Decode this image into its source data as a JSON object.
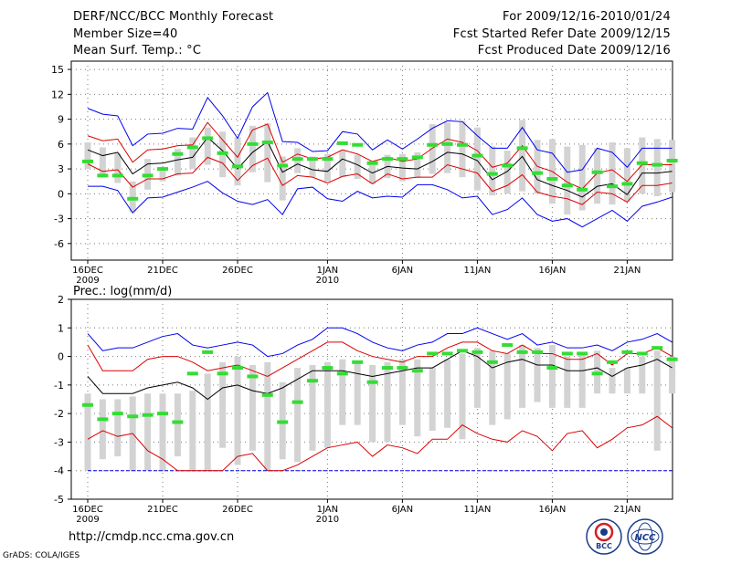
{
  "header": {
    "title": "DERF/NCC/BCC Monthly Forecast",
    "member_size": "Member Size=40",
    "variable1": "Mean Surf. Temp.: °C",
    "period": "For 2009/12/16-2010/01/24",
    "started": "Fcst Started Refer Date 2009/12/15",
    "produced": "Fcst Produced Date 2009/12/16"
  },
  "footer": {
    "url": "http://cmdp.ncc.cma.gov.cn",
    "grads": "GrADS: COLA/IGES",
    "logo_bcc": "BCC",
    "logo_ncc": "NCC"
  },
  "colors": {
    "bar": "#d3d3d3",
    "obs": "#33dd33",
    "max": "#0000ee",
    "min": "#0000ee",
    "upper": "#dd0000",
    "lower": "#dd0000",
    "mean": "#000000",
    "grid": "#777777"
  },
  "chart_data": [
    {
      "type": "line",
      "title": "Mean Surf. Temp.: °C",
      "x_ticks": [
        {
          "i": 0,
          "label": "16DEC",
          "sub": "2009"
        },
        {
          "i": 5,
          "label": "21DEC"
        },
        {
          "i": 10,
          "label": "26DEC"
        },
        {
          "i": 16,
          "label": "1JAN",
          "sub": "2010"
        },
        {
          "i": 21,
          "label": "6JAN"
        },
        {
          "i": 26,
          "label": "11JAN"
        },
        {
          "i": 31,
          "label": "16JAN"
        },
        {
          "i": 36,
          "label": "21JAN"
        }
      ],
      "ylim": [
        -8,
        16
      ],
      "yticks": [
        -6,
        -3,
        0,
        3,
        6,
        9,
        12,
        15
      ],
      "series": [
        {
          "name": "max",
          "values": [
            10.3,
            9.6,
            9.4,
            5.8,
            7.2,
            7.3,
            7.9,
            7.8,
            11.6,
            9.4,
            6.7,
            10.5,
            12.2,
            6.3,
            6.2,
            5.1,
            5.2,
            7.5,
            7.2,
            5.3,
            6.5,
            5.4,
            6.6,
            7.9,
            8.8,
            8.7,
            7.0,
            5.5,
            5.5,
            8.0,
            5.3,
            4.9,
            2.6,
            2.9,
            5.5,
            5.0,
            3.2,
            5.5,
            5.5,
            5.5
          ]
        },
        {
          "name": "upper",
          "values": [
            7.0,
            6.4,
            6.6,
            3.8,
            5.3,
            5.4,
            5.8,
            5.9,
            8.6,
            6.5,
            4.4,
            7.7,
            8.4,
            3.8,
            4.8,
            4.2,
            4.4,
            5.3,
            4.8,
            3.9,
            4.4,
            3.9,
            4.2,
            5.5,
            6.6,
            6.2,
            5.2,
            3.2,
            3.7,
            5.8,
            3.3,
            2.7,
            1.4,
            0.6,
            2.5,
            2.9,
            1.5,
            3.5,
            3.5,
            3.5
          ]
        },
        {
          "name": "mean",
          "values": [
            5.3,
            4.6,
            5.0,
            2.4,
            3.6,
            3.7,
            4.1,
            4.4,
            6.8,
            5.2,
            3.0,
            5.0,
            6.3,
            2.6,
            3.6,
            2.9,
            2.7,
            4.2,
            3.5,
            2.5,
            3.3,
            3.1,
            3.0,
            3.9,
            5.0,
            4.8,
            4.0,
            1.7,
            2.7,
            4.5,
            1.7,
            1.0,
            0.4,
            -0.4,
            0.9,
            1.2,
            -0.1,
            2.5,
            2.5,
            2.7
          ]
        },
        {
          "name": "lower",
          "values": [
            3.6,
            2.7,
            2.9,
            0.8,
            1.8,
            1.8,
            2.4,
            2.5,
            4.4,
            3.7,
            1.6,
            3.4,
            4.3,
            1.0,
            2.2,
            2.0,
            1.3,
            2.1,
            2.4,
            1.2,
            2.4,
            1.8,
            2.0,
            2.0,
            3.5,
            3.0,
            2.5,
            0.3,
            1.0,
            2.3,
            0.2,
            -0.3,
            -0.6,
            -1.3,
            0.2,
            0.0,
            -1.0,
            1.0,
            1.0,
            1.3
          ]
        },
        {
          "name": "min",
          "values": [
            0.9,
            0.9,
            0.4,
            -2.3,
            -0.5,
            -0.4,
            0.2,
            0.8,
            1.5,
            0.1,
            -0.9,
            -1.3,
            -0.7,
            -2.5,
            0.6,
            0.8,
            -0.6,
            -0.9,
            0.3,
            -0.5,
            -0.3,
            -0.4,
            1.1,
            1.1,
            0.5,
            -0.5,
            -0.3,
            -2.5,
            -1.9,
            -0.5,
            -2.5,
            -3.3,
            -3.0,
            -4.0,
            -3.0,
            -2.0,
            -3.3,
            -1.5,
            -1.0,
            -0.4
          ]
        },
        {
          "name": "box_high",
          "values": [
            6.2,
            5.6,
            4.9,
            1.5,
            4.2,
            3.0,
            5.4,
            6.8,
            8.0,
            7.5,
            6.8,
            8.2,
            8.5,
            4.5,
            5.5,
            4.5,
            4.8,
            5.2,
            4.7,
            3.8,
            4.7,
            4.8,
            5.0,
            8.4,
            8.6,
            8.8,
            8.0,
            5.7,
            5.2,
            8.9,
            6.5,
            6.6,
            5.7,
            5.9,
            5.5,
            6.2,
            5.5,
            6.8,
            6.6,
            6.5
          ]
        },
        {
          "name": "box_low",
          "values": [
            3.0,
            2.0,
            1.3,
            -2.2,
            0.5,
            1.5,
            2.2,
            3.0,
            3.5,
            2.0,
            1.0,
            2.6,
            1.4,
            -0.8,
            2.5,
            2.0,
            1.5,
            2.0,
            1.8,
            1.2,
            1.9,
            1.5,
            1.9,
            2.4,
            2.5,
            2.0,
            0.4,
            -0.2,
            0.0,
            0.3,
            0.0,
            -1.2,
            -2.5,
            -2.0,
            -1.2,
            -1.3,
            -1.0,
            0.0,
            -0.3,
            0.2
          ]
        },
        {
          "name": "observed",
          "values": [
            3.9,
            2.2,
            2.2,
            -0.6,
            2.2,
            3.0,
            4.8,
            5.6,
            6.7,
            4.9,
            3.3,
            6.0,
            6.2,
            3.4,
            4.2,
            4.2,
            4.2,
            6.1,
            5.9,
            3.7,
            4.2,
            4.2,
            4.4,
            5.9,
            6.0,
            5.9,
            4.6,
            2.4,
            3.4,
            5.5,
            2.5,
            1.8,
            1.0,
            0.5,
            2.6,
            0.9,
            1.2,
            3.7,
            3.5,
            4.0
          ]
        }
      ]
    },
    {
      "type": "line",
      "title": "Prec.: log(mm/d)",
      "x_ticks": [
        {
          "i": 0,
          "label": "16DEC",
          "sub": "2009"
        },
        {
          "i": 5,
          "label": "21DEC"
        },
        {
          "i": 10,
          "label": "26DEC"
        },
        {
          "i": 16,
          "label": "1JAN",
          "sub": "2010"
        },
        {
          "i": 21,
          "label": "6JAN"
        },
        {
          "i": 26,
          "label": "11JAN"
        },
        {
          "i": 31,
          "label": "16JAN"
        },
        {
          "i": 36,
          "label": "21JAN"
        }
      ],
      "ylim": [
        -5,
        2
      ],
      "yticks": [
        -5,
        -4,
        -3,
        -2,
        -1,
        0,
        1,
        2
      ],
      "series": [
        {
          "name": "max",
          "values": [
            0.8,
            0.2,
            0.3,
            0.3,
            0.5,
            0.7,
            0.8,
            0.4,
            0.3,
            0.4,
            0.5,
            0.4,
            0.0,
            0.1,
            0.4,
            0.6,
            1.0,
            1.0,
            0.8,
            0.5,
            0.3,
            0.2,
            0.4,
            0.5,
            0.8,
            0.8,
            1.0,
            0.8,
            0.6,
            0.8,
            0.4,
            0.5,
            0.3,
            0.3,
            0.4,
            0.2,
            0.5,
            0.6,
            0.8,
            0.5
          ]
        },
        {
          "name": "upper",
          "values": [
            0.4,
            -0.5,
            -0.5,
            -0.5,
            -0.1,
            0.0,
            0.0,
            -0.2,
            -0.5,
            -0.4,
            -0.3,
            -0.5,
            -0.7,
            -0.4,
            -0.1,
            0.2,
            0.5,
            0.5,
            0.2,
            0.0,
            -0.1,
            -0.2,
            0.0,
            0.0,
            0.3,
            0.5,
            0.5,
            0.2,
            0.1,
            0.4,
            0.1,
            0.1,
            -0.1,
            -0.1,
            0.1,
            -0.3,
            0.1,
            0.1,
            0.3,
            0.0
          ]
        },
        {
          "name": "mean",
          "values": [
            -0.7,
            -1.3,
            -1.3,
            -1.3,
            -1.1,
            -1.0,
            -0.9,
            -1.1,
            -1.5,
            -1.1,
            -1.0,
            -1.2,
            -1.3,
            -1.1,
            -0.8,
            -0.5,
            -0.5,
            -0.5,
            -0.6,
            -0.7,
            -0.6,
            -0.5,
            -0.4,
            -0.4,
            -0.1,
            0.2,
            0.0,
            -0.4,
            -0.2,
            -0.1,
            -0.3,
            -0.3,
            -0.5,
            -0.5,
            -0.4,
            -0.7,
            -0.4,
            -0.3,
            -0.1,
            -0.4
          ]
        },
        {
          "name": "lower",
          "values": [
            -2.9,
            -2.6,
            -2.8,
            -2.7,
            -3.3,
            -3.6,
            -4.0,
            -4.0,
            -4.0,
            -4.0,
            -3.5,
            -3.4,
            -4.0,
            -4.0,
            -3.8,
            -3.5,
            -3.2,
            -3.1,
            -3.0,
            -3.5,
            -3.1,
            -3.2,
            -3.4,
            -2.9,
            -2.9,
            -2.4,
            -2.7,
            -2.9,
            -3.0,
            -2.6,
            -2.8,
            -3.3,
            -2.7,
            -2.6,
            -3.2,
            -2.9,
            -2.5,
            -2.4,
            -2.1,
            -2.5
          ]
        },
        {
          "name": "min",
          "values": [
            -4.0,
            -4.0,
            -4.0,
            -4.0,
            -4.0,
            -4.0,
            -4.0,
            -4.0,
            -4.0,
            -4.0,
            -4.0,
            -4.0,
            -4.0,
            -4.0,
            -4.0,
            -4.0,
            -4.0,
            -4.0,
            -4.0,
            -4.0,
            -4.0,
            -4.0,
            -4.0,
            -4.0,
            -4.0,
            -4.0,
            -4.0,
            -4.0,
            -4.0,
            -4.0,
            -4.0,
            -4.0,
            -4.0,
            -4.0,
            -4.0,
            -4.0,
            -4.0,
            -4.0,
            -4.0,
            -4.0
          ]
        },
        {
          "name": "box_high",
          "values": [
            -1.3,
            -1.5,
            -1.5,
            -1.4,
            -1.3,
            -1.3,
            -1.3,
            -1.2,
            -0.6,
            -0.2,
            0.0,
            -0.3,
            -0.2,
            -0.9,
            -0.4,
            -0.3,
            -0.2,
            -0.1,
            -0.2,
            -0.3,
            -0.2,
            -0.1,
            -0.1,
            -0.4,
            -0.1,
            0.1,
            0.3,
            0.2,
            0.1,
            0.4,
            0.3,
            0.4,
            0.0,
            0.1,
            0.2,
            -0.4,
            -0.4,
            0.0,
            0.2,
            0.0
          ]
        },
        {
          "name": "box_low",
          "values": [
            -4.0,
            -3.6,
            -3.5,
            -4.0,
            -4.0,
            -4.0,
            -3.5,
            -4.0,
            -4.0,
            -3.2,
            -3.8,
            -3.3,
            -4.0,
            -3.6,
            -3.7,
            -3.3,
            -3.2,
            -2.4,
            -2.4,
            -3.0,
            -3.0,
            -2.4,
            -2.8,
            -2.6,
            -2.5,
            -2.9,
            -1.8,
            -2.4,
            -2.2,
            -1.8,
            -1.6,
            -1.8,
            -1.8,
            -1.8,
            -1.3,
            -1.3,
            -1.3,
            -1.3,
            -3.3,
            -1.3
          ]
        },
        {
          "name": "observed",
          "values": [
            -1.7,
            -2.2,
            -2.0,
            -2.1,
            -2.05,
            -2.0,
            -2.3,
            -0.6,
            0.15,
            -0.6,
            -0.4,
            -0.7,
            -1.35,
            -2.3,
            -1.6,
            -0.85,
            -0.4,
            -0.6,
            -0.2,
            -0.9,
            -0.4,
            -0.4,
            -0.5,
            0.1,
            0.1,
            0.2,
            0.15,
            -0.2,
            0.4,
            0.15,
            0.15,
            -0.4,
            0.1,
            0.1,
            -0.6,
            -0.2,
            0.15,
            0.1,
            0.3,
            -0.1
          ]
        }
      ]
    }
  ]
}
